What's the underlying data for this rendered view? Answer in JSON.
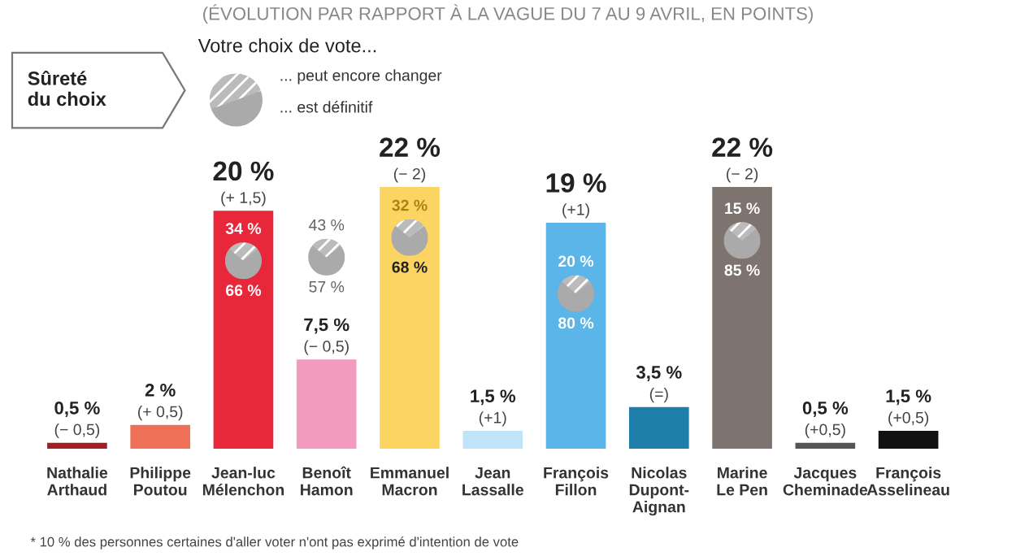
{
  "chart_data": {
    "type": "bar",
    "subtitle": "(ÉVOLUTION PAR RAPPORT À LA VAGUE DU 7 AU 9 AVRIL, EN POINTS)",
    "categories": [
      "Nathalie\nArthaud",
      "Philippe\nPoutou",
      "Jean-luc\nMélenchon",
      "Benoît\nHamon",
      "Emmanuel\nMacron",
      "Jean\nLassalle",
      "François\nFillon",
      "Nicolas\nDupont-\nAignan",
      "Marine\nLe Pen",
      "Jacques\nCheminade",
      "François\nAsselineau"
    ],
    "values": [
      0.5,
      2,
      20,
      7.5,
      22,
      1.5,
      19,
      3.5,
      22,
      0.5,
      1.5
    ],
    "colors": [
      "#a31e22",
      "#ee7057",
      "#e8283a",
      "#f29ac0",
      "#fcd462",
      "#bfe3f7",
      "#5bb5e8",
      "#1e7fab",
      "#7d7470",
      "#555555",
      "#111111"
    ],
    "value_labels": [
      "0,5 %",
      "2 %",
      "20 %",
      "7,5 %",
      "22 %",
      "1,5 %",
      "19 %",
      "3,5 %",
      "22 %",
      "0,5 %",
      "1,5 %"
    ],
    "tick_labels": "x",
    "annotations": [
      {
        "text": "(− 0,5)",
        "x": "Nathalie\nArthaud",
        "y": 0.5
      },
      {
        "text": "(+ 0,5)",
        "x": "Philippe\nPoutou",
        "y": 2
      },
      {
        "text": "(+ 1,5)",
        "x": "Jean-luc\nMélenchon",
        "y": 20
      },
      {
        "text": "(− 0,5)",
        "x": "Benoît\nHamon",
        "y": 7.5
      },
      {
        "text": "(− 2)",
        "x": "Emmanuel\nMacron",
        "y": 22
      },
      {
        "text": "(+1)",
        "x": "Jean\nLassalle",
        "y": 1.5
      },
      {
        "text": "(+1)",
        "x": "François\nFillon",
        "y": 19
      },
      {
        "text": "(=)",
        "x": "Nicolas\nDupont-\nAignan",
        "y": 3.5
      },
      {
        "text": "(− 2)",
        "x": "Marine\nLe Pen",
        "y": 22
      },
      {
        "text": "(+0,5)",
        "x": "Jacques\nCheminade",
        "y": 0.5
      },
      {
        "text": "(+0,5)",
        "x": "François\nAsselineau",
        "y": 1.5
      },
      "34 %",
      "66 %",
      "43 %",
      "57 %",
      "32 %",
      "68 %",
      "20 %",
      "80 %",
      "15 %",
      "85 %",
      "Sûreté\ndu choix",
      "Votre choix de vote...",
      "... peut encore changer",
      "... est définitif",
      "* 10 % des personnes certaines d'aller voter n'ont pas exprimé d'intention de vote"
    ]
  }
}
